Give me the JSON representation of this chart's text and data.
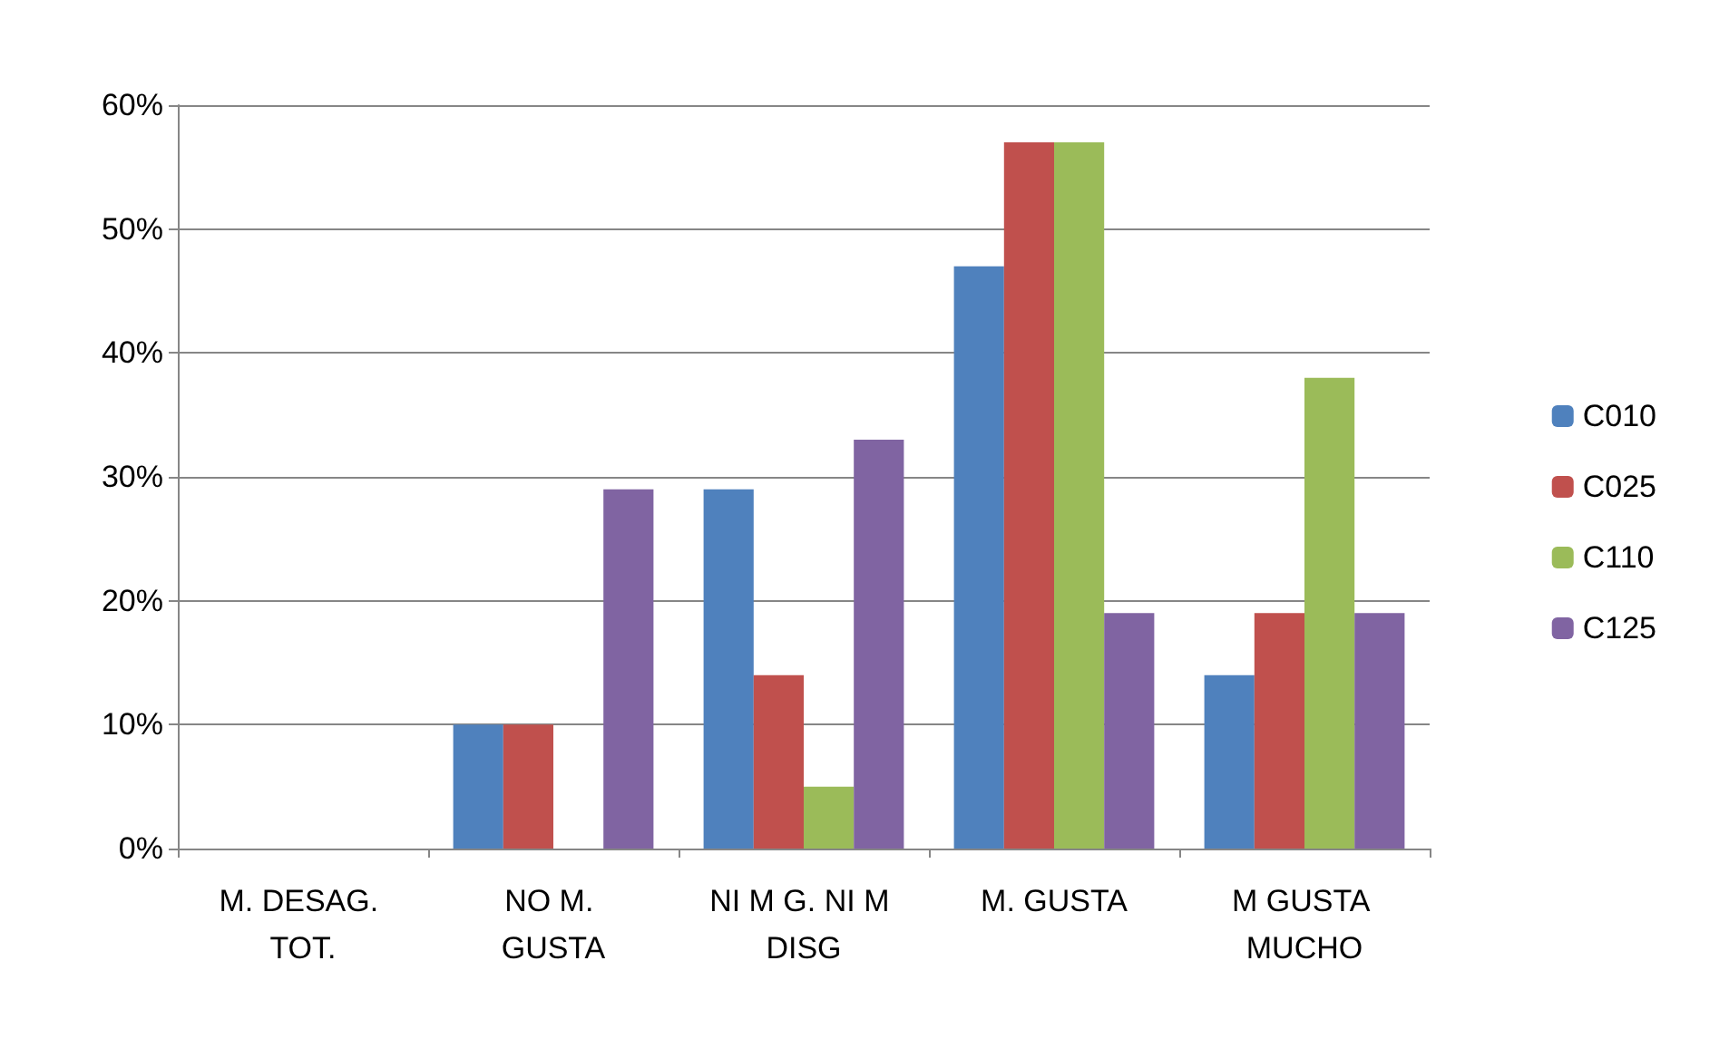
{
  "chart_data": {
    "type": "bar",
    "categories": [
      "M. DESAG. TOT.",
      "NO M. GUSTA",
      "NI M G. NI M DISG",
      "M. GUSTA",
      "M GUSTA MUCHO"
    ],
    "series": [
      {
        "name": "C010",
        "color": "#4f81bd",
        "values": [
          0,
          10,
          29,
          47,
          14
        ]
      },
      {
        "name": "C025",
        "color": "#c0504d",
        "values": [
          0,
          10,
          14,
          57,
          19
        ]
      },
      {
        "name": "C110",
        "color": "#9bbb59",
        "values": [
          0,
          0,
          5,
          57,
          38
        ]
      },
      {
        "name": "C125",
        "color": "#8064a2",
        "values": [
          0,
          29,
          33,
          19,
          19
        ]
      }
    ],
    "ylim": [
      0,
      60
    ],
    "yticks": [
      {
        "value": 0,
        "label": "0%"
      },
      {
        "value": 10,
        "label": "10%"
      },
      {
        "value": 20,
        "label": "20%"
      },
      {
        "value": 30,
        "label": "30%"
      },
      {
        "value": 40,
        "label": "40%"
      },
      {
        "value": 50,
        "label": "50%"
      },
      {
        "value": 60,
        "label": "60%"
      }
    ],
    "grid": "y",
    "legend": "right"
  }
}
